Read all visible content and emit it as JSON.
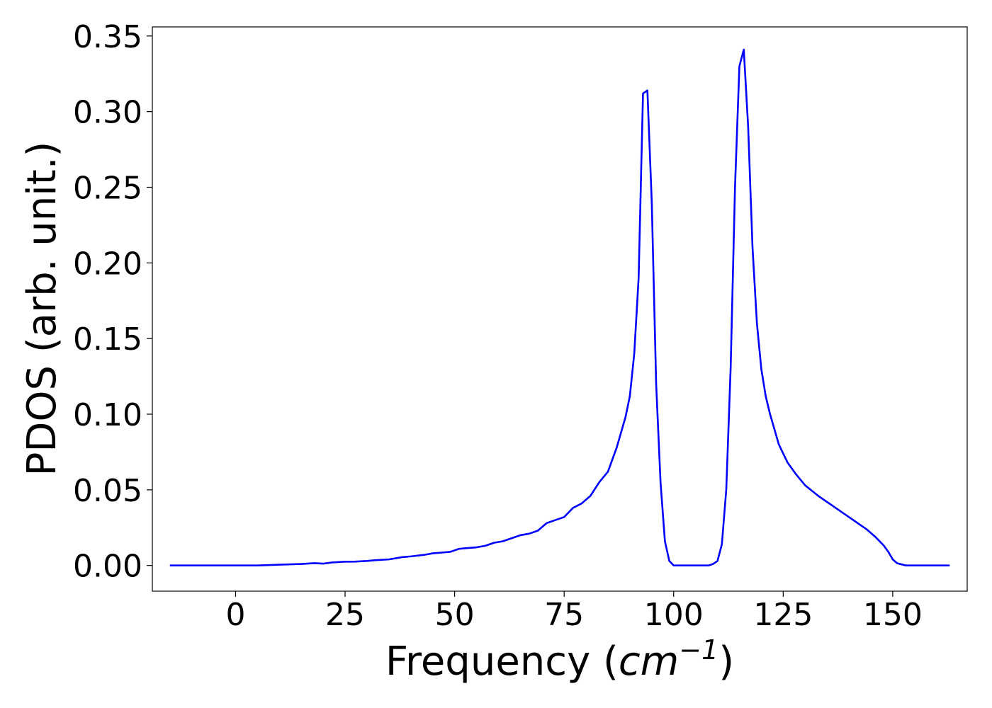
{
  "chart_data": {
    "type": "line",
    "title": "",
    "xlabel": "Frequency (cm⁻¹)",
    "xlabel_parts": {
      "prefix": "Frequency (",
      "unit": "cm",
      "exponent": "−1",
      "suffix": ")"
    },
    "ylabel": "PDOS (arb. unit.)",
    "xlim": [
      -19,
      167
    ],
    "ylim": [
      -0.017,
      0.356
    ],
    "xticks": [
      0,
      25,
      50,
      75,
      100,
      125,
      150
    ],
    "xtick_labels": [
      "0",
      "25",
      "50",
      "75",
      "100",
      "125",
      "150"
    ],
    "yticks": [
      0.0,
      0.05,
      0.1,
      0.15,
      0.2,
      0.25,
      0.3,
      0.35
    ],
    "ytick_labels": [
      "0.00",
      "0.05",
      "0.10",
      "0.15",
      "0.20",
      "0.25",
      "0.30",
      "0.35"
    ],
    "grid": false,
    "legend": "none",
    "series": [
      {
        "color": "#0000ff",
        "x": [
          -15,
          0,
          5,
          10,
          15,
          18,
          20,
          22,
          25,
          27,
          30,
          32,
          35,
          38,
          40,
          43,
          45,
          47,
          49,
          51,
          53,
          55,
          57,
          59,
          61,
          63,
          65,
          67,
          69,
          71,
          73,
          75,
          77,
          79,
          81,
          83,
          85,
          86,
          87,
          88,
          89,
          90,
          91,
          92,
          93,
          94,
          95,
          96,
          97,
          98,
          99,
          100,
          101,
          103,
          105,
          108,
          109,
          110,
          111,
          112,
          113,
          114,
          115,
          116,
          117,
          118,
          119,
          120,
          121,
          122,
          124,
          126,
          128,
          130,
          133,
          136,
          140,
          144,
          146,
          148,
          149,
          150,
          151,
          153,
          160,
          163
        ],
        "y": [
          0.0,
          0.0,
          0.0,
          0.0005,
          0.001,
          0.0015,
          0.0012,
          0.002,
          0.0025,
          0.0025,
          0.003,
          0.0035,
          0.004,
          0.0055,
          0.006,
          0.007,
          0.008,
          0.0085,
          0.009,
          0.011,
          0.0115,
          0.012,
          0.013,
          0.015,
          0.016,
          0.018,
          0.02,
          0.021,
          0.023,
          0.028,
          0.03,
          0.032,
          0.038,
          0.041,
          0.046,
          0.055,
          0.062,
          0.07,
          0.078,
          0.088,
          0.098,
          0.112,
          0.14,
          0.19,
          0.312,
          0.314,
          0.24,
          0.12,
          0.055,
          0.016,
          0.003,
          0.0,
          0.0,
          0.0,
          0.0,
          0.0,
          0.001,
          0.003,
          0.014,
          0.05,
          0.13,
          0.25,
          0.33,
          0.341,
          0.29,
          0.21,
          0.16,
          0.13,
          0.112,
          0.1,
          0.08,
          0.068,
          0.06,
          0.053,
          0.046,
          0.04,
          0.032,
          0.024,
          0.019,
          0.013,
          0.009,
          0.004,
          0.0015,
          0.0,
          0.0,
          0.0
        ]
      }
    ]
  }
}
